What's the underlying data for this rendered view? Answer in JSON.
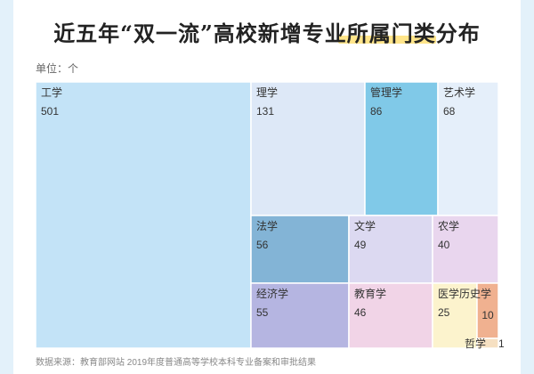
{
  "title": "近五年“双一流”高校新增专业所属门类分布",
  "unit": "单位：个",
  "source": "数据来源：教育部网站 2019年度普通高等学校本科专业备案和审批结果",
  "chart_data": {
    "type": "treemap",
    "title": "近五年“双一流”高校新增专业所属门类分布",
    "unit": "个",
    "items": [
      {
        "name": "工学",
        "value": 501,
        "color": "#c3e3f7"
      },
      {
        "name": "理学",
        "value": 131,
        "color": "#dde8f7"
      },
      {
        "name": "管理学",
        "value": 86,
        "color": "#80c9e8"
      },
      {
        "name": "艺术学",
        "value": 68,
        "color": "#e5effa"
      },
      {
        "name": "法学",
        "value": 56,
        "color": "#83b4d6"
      },
      {
        "name": "文学",
        "value": 49,
        "color": "#dcd9f1"
      },
      {
        "name": "农学",
        "value": 40,
        "color": "#e9d6ee"
      },
      {
        "name": "经济学",
        "value": 55,
        "color": "#b5b5e1"
      },
      {
        "name": "教育学",
        "value": 46,
        "color": "#f1d4e7"
      },
      {
        "name": "医学",
        "value": 25,
        "color": "#fcf3cd"
      },
      {
        "name": "历史学",
        "value": 10,
        "color": "#f0b190"
      },
      {
        "name": "哲学",
        "value": 1,
        "color": "#f6e0c2"
      }
    ]
  }
}
